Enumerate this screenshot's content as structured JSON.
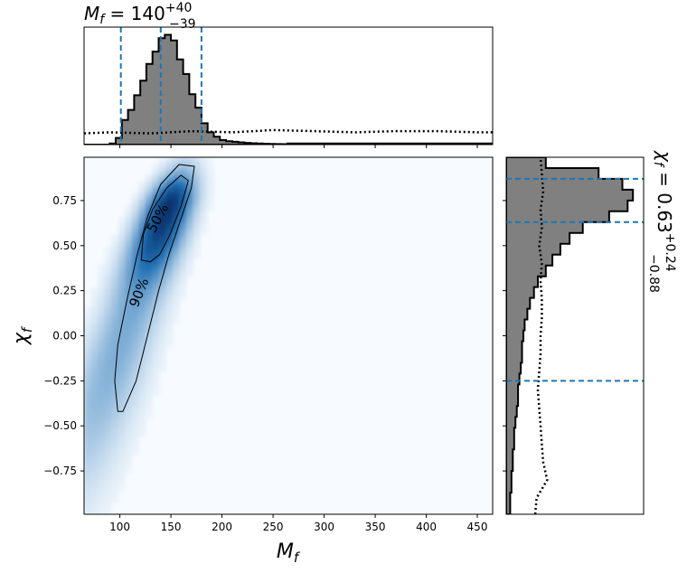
{
  "chart_data": {
    "type": "corner",
    "title": {
      "top": {
        "main": "M",
        "sub": "f",
        "eq": " = 140",
        "sup": "+40",
        "low": "−39"
      },
      "right": {
        "main": "χ",
        "sub": "f",
        "eq": " = 0.63",
        "sup": "+0.24",
        "low": "−0.88"
      }
    },
    "axes": {
      "x": {
        "label_main": "M",
        "label_sub": "f",
        "lim": [
          65,
          465
        ],
        "ticks": [
          100,
          150,
          200,
          250,
          300,
          350,
          400,
          450
        ]
      },
      "y": {
        "label_main": "χ",
        "label_sub": "f",
        "lim": [
          -0.99,
          0.99
        ],
        "ticks": [
          -0.75,
          -0.5,
          -0.25,
          0.0,
          0.25,
          0.5,
          0.75
        ],
        "tick_labels": [
          "−0.75",
          "−0.50",
          "−0.25",
          "0.00",
          "0.25",
          "0.50",
          "0.75"
        ]
      }
    },
    "colors": {
      "hist_fill": "#808080",
      "hist_edge": "#000000",
      "quantile_line": "#1f77b4",
      "density_low": "#f7fbff",
      "density_high": "#08306b"
    },
    "mass_marginal": {
      "bin_edges": [
        90,
        96,
        102,
        108,
        114,
        120,
        126,
        132,
        138,
        144,
        150,
        156,
        162,
        168,
        174,
        180,
        186,
        192,
        198,
        204,
        210,
        216,
        222,
        228,
        234,
        240,
        246,
        252,
        258,
        264
      ],
      "heights": [
        0.01,
        0.06,
        0.22,
        0.31,
        0.44,
        0.57,
        0.72,
        0.83,
        0.95,
        0.98,
        0.93,
        0.76,
        0.63,
        0.45,
        0.33,
        0.19,
        0.11,
        0.07,
        0.04,
        0.03,
        0.025,
        0.02,
        0.015,
        0.012,
        0.01,
        0.008,
        0.006,
        0.005,
        0.004
      ],
      "tail_level": 0.01,
      "quantiles": [
        101,
        140,
        180
      ],
      "prior_dotted": {
        "x": [
          65,
          90,
          130,
          170,
          210,
          250,
          290,
          330,
          370,
          410,
          450,
          465
        ],
        "y": [
          0.1,
          0.11,
          0.1,
          0.12,
          0.11,
          0.13,
          0.12,
          0.11,
          0.12,
          0.12,
          0.11,
          0.11
        ]
      }
    },
    "spin_marginal": {
      "bin_edges": [
        -0.99,
        -0.93,
        -0.87,
        -0.81,
        -0.75,
        -0.69,
        -0.63,
        -0.57,
        -0.51,
        -0.45,
        -0.39,
        -0.33,
        -0.27,
        -0.21,
        -0.15,
        -0.09,
        -0.03,
        0.03,
        0.09,
        0.15,
        0.21,
        0.27,
        0.33,
        0.39,
        0.45,
        0.51,
        0.57,
        0.63,
        0.69,
        0.75,
        0.81,
        0.87,
        0.93,
        0.99
      ],
      "densities": [
        0.03,
        0.03,
        0.04,
        0.04,
        0.05,
        0.05,
        0.06,
        0.06,
        0.07,
        0.08,
        0.09,
        0.09,
        0.1,
        0.11,
        0.12,
        0.12,
        0.13,
        0.14,
        0.16,
        0.18,
        0.21,
        0.24,
        0.3,
        0.35,
        0.41,
        0.48,
        0.58,
        0.78,
        0.92,
        0.96,
        0.88,
        0.7,
        0.3
      ],
      "quantiles": [
        -0.25,
        0.63,
        0.87
      ],
      "prior_dotted": {
        "y": [
          -0.99,
          -0.9,
          -0.8,
          -0.7,
          -0.6,
          -0.5,
          -0.4,
          -0.3,
          -0.2,
          -0.1,
          0.0,
          0.1,
          0.2,
          0.3,
          0.4,
          0.5,
          0.6,
          0.7,
          0.8,
          0.9,
          0.99
        ],
        "x": [
          0.22,
          0.23,
          0.31,
          0.28,
          0.27,
          0.26,
          0.25,
          0.24,
          0.25,
          0.26,
          0.26,
          0.27,
          0.27,
          0.26,
          0.27,
          0.25,
          0.27,
          0.26,
          0.28,
          0.27,
          0.26
        ]
      }
    },
    "contours": [
      {
        "label": "90%",
        "points": [
          [
            98,
            -0.42
          ],
          [
            95,
            -0.25
          ],
          [
            98,
            -0.05
          ],
          [
            107,
            0.2
          ],
          [
            117,
            0.45
          ],
          [
            127,
            0.66
          ],
          [
            140,
            0.84
          ],
          [
            158,
            0.95
          ],
          [
            173,
            0.94
          ],
          [
            170,
            0.82
          ],
          [
            160,
            0.65
          ],
          [
            148,
            0.45
          ],
          [
            138,
            0.25
          ],
          [
            127,
            0.0
          ],
          [
            116,
            -0.25
          ],
          [
            103,
            -0.42
          ]
        ]
      },
      {
        "label": "50%",
        "points": [
          [
            121,
            0.42
          ],
          [
            123,
            0.56
          ],
          [
            132,
            0.7
          ],
          [
            146,
            0.82
          ],
          [
            160,
            0.89
          ],
          [
            167,
            0.86
          ],
          [
            160,
            0.72
          ],
          [
            149,
            0.56
          ],
          [
            139,
            0.45
          ],
          [
            130,
            0.41
          ]
        ]
      }
    ],
    "density_peak": {
      "x": 148,
      "y": 0.72
    }
  }
}
